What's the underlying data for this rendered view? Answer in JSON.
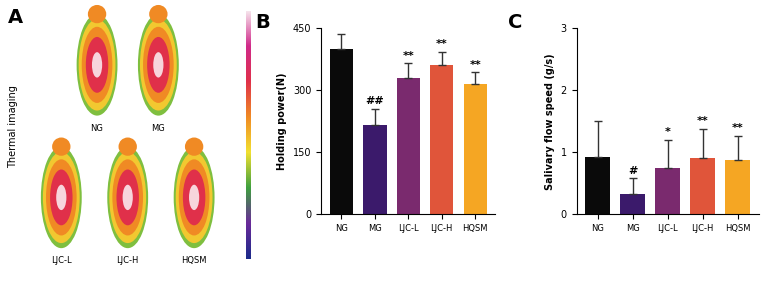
{
  "panel_a": {
    "label": "A",
    "title": "Thermal imaging",
    "images": [
      "NG",
      "MG",
      "LJC-L",
      "LJC-H",
      "HQSM"
    ]
  },
  "chart_data": [
    {
      "type": "bar",
      "y_label": "Holding power(N)",
      "categories": [
        "NG",
        "MG",
        "LJC-L",
        "LJC-H",
        "HQSM"
      ],
      "values": [
        400,
        215,
        330,
        362,
        315
      ],
      "errors": [
        35,
        40,
        35,
        30,
        28
      ],
      "colors": [
        "#0a0a0a",
        "#3b1a6b",
        "#7a2a6e",
        "#e0553a",
        "#f5a623"
      ],
      "ylim": [
        0,
        450
      ],
      "yticks": [
        0,
        150,
        300,
        450
      ],
      "annotations": [
        {
          "text": "B"
        },
        {
          "category": "MG",
          "text": "##"
        },
        {
          "category": "LJC-L",
          "text": "**"
        },
        {
          "category": "LJC-H",
          "text": "**"
        },
        {
          "category": "HQSM",
          "text": "**"
        }
      ]
    },
    {
      "type": "bar",
      "y_label": "Salivary flow speed (g/s)",
      "categories": [
        "NG",
        "MG",
        "LJC-L",
        "LJC-H",
        "HQSM"
      ],
      "values": [
        0.93,
        0.33,
        0.75,
        0.9,
        0.87
      ],
      "errors": [
        0.57,
        0.25,
        0.45,
        0.48,
        0.4
      ],
      "colors": [
        "#0a0a0a",
        "#3b1a6b",
        "#7a2a6e",
        "#e0553a",
        "#f5a623"
      ],
      "ylim": [
        0,
        3
      ],
      "yticks": [
        0,
        1,
        2,
        3
      ],
      "annotations": [
        {
          "text": "C"
        },
        {
          "category": "MG",
          "text": "#"
        },
        {
          "category": "LJC-L",
          "text": "*"
        },
        {
          "category": "LJC-H",
          "text": "**"
        },
        {
          "category": "HQSM",
          "text": "**"
        }
      ]
    }
  ]
}
